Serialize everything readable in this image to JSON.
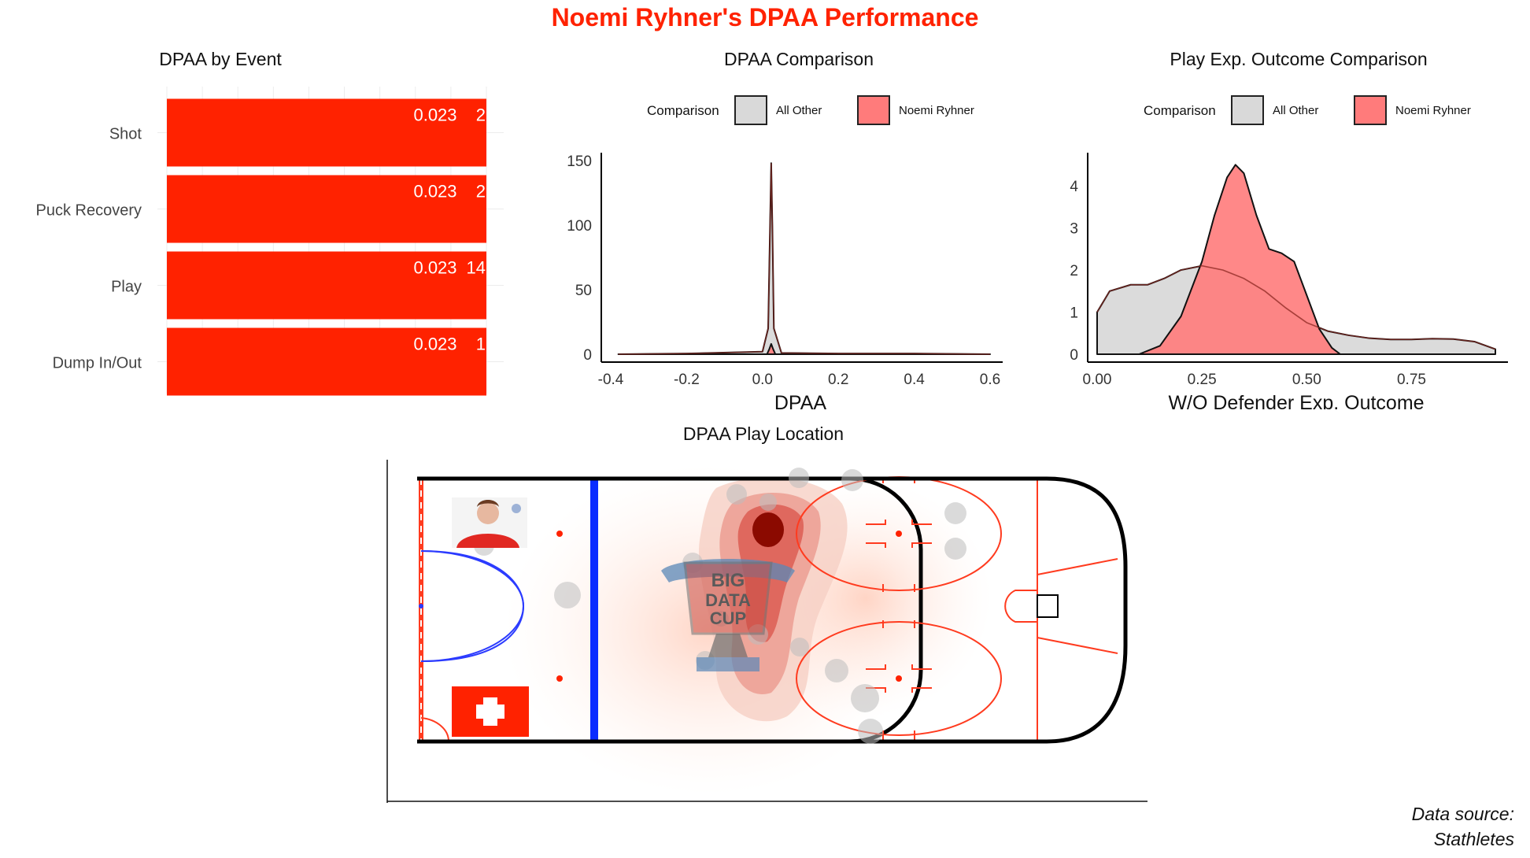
{
  "title": "Noemi Ryhner's DPAA Performance",
  "caption_line1": "Data source:",
  "caption_line2": "Stathletes",
  "colors": {
    "accent": "#ff2200",
    "all_other": "#d9d9d9",
    "player": "#ff7b7b",
    "blue_line": "#0a2cff"
  },
  "icons": {
    "logo": "big-data-cup-logo",
    "flag": "swiss-flag",
    "photo": "player-photo"
  },
  "chart_data": [
    {
      "type": "bar",
      "orientation": "horizontal",
      "title": "DPAA by Event",
      "xlabel": "",
      "ylabel": "",
      "categories": [
        "Shot",
        "Puck Recovery",
        "Play",
        "Dump In/Out"
      ],
      "values": [
        0.023,
        0.023,
        0.023,
        0.023
      ],
      "value_labels": [
        "0.023",
        "0.023",
        "0.023",
        "0.023"
      ],
      "counts": [
        "2",
        "2",
        "14",
        "1"
      ],
      "xlim": [
        0,
        0.023
      ],
      "grid": true
    },
    {
      "type": "area",
      "subtype": "density",
      "title": "DPAA Comparison",
      "xlabel": "DPAA",
      "ylabel": "",
      "legend_title": "Comparison",
      "legend_position": "top",
      "xlim": [
        -0.4,
        0.6
      ],
      "ylim": [
        0,
        150
      ],
      "xticks": [
        "-0.4",
        "-0.2",
        "0.0",
        "0.2",
        "0.4",
        "0.6"
      ],
      "yticks": [
        "0",
        "50",
        "100",
        "150"
      ],
      "series": [
        {
          "name": "All Other",
          "color": "#d9d9d9",
          "x": [
            -0.38,
            -0.2,
            0.0,
            0.015,
            0.02,
            0.023,
            0.026,
            0.03,
            0.05,
            0.2,
            0.4,
            0.6
          ],
          "y": [
            0,
            0.5,
            2,
            20,
            100,
            148,
            100,
            20,
            1,
            0.5,
            0.5,
            0
          ]
        },
        {
          "name": "Noemi Ryhner",
          "color": "#ff7b7b",
          "x": [
            0.012,
            0.018,
            0.023,
            0.028,
            0.034
          ],
          "y": [
            0,
            4,
            8,
            4,
            0
          ]
        }
      ]
    },
    {
      "type": "area",
      "subtype": "density",
      "title": "Play Exp. Outcome Comparison",
      "xlabel": "W/O Defender Exp. Outcome",
      "ylabel": "",
      "legend_title": "Comparison",
      "legend_position": "top",
      "xlim": [
        0,
        0.95
      ],
      "ylim": [
        0,
        4.6
      ],
      "xticks": [
        "0.00",
        "0.25",
        "0.50",
        "0.75"
      ],
      "yticks": [
        "0",
        "1",
        "2",
        "3",
        "4"
      ],
      "series": [
        {
          "name": "All Other",
          "color": "#d9d9d9",
          "x": [
            0.0,
            0.03,
            0.08,
            0.12,
            0.16,
            0.2,
            0.25,
            0.3,
            0.35,
            0.4,
            0.45,
            0.5,
            0.55,
            0.6,
            0.65,
            0.7,
            0.75,
            0.8,
            0.85,
            0.9,
            0.95
          ],
          "y": [
            1.0,
            1.5,
            1.65,
            1.65,
            1.8,
            2.0,
            2.1,
            2.0,
            1.8,
            1.5,
            1.1,
            0.75,
            0.55,
            0.45,
            0.38,
            0.35,
            0.35,
            0.37,
            0.36,
            0.3,
            0.12
          ]
        },
        {
          "name": "Noemi Ryhner",
          "color": "#ff7b7b",
          "x": [
            0.1,
            0.15,
            0.2,
            0.25,
            0.28,
            0.31,
            0.33,
            0.35,
            0.38,
            0.41,
            0.44,
            0.47,
            0.5,
            0.53,
            0.56,
            0.58
          ],
          "y": [
            0.0,
            0.2,
            0.9,
            2.2,
            3.3,
            4.2,
            4.5,
            4.3,
            3.3,
            2.5,
            2.4,
            2.2,
            1.4,
            0.6,
            0.15,
            0.0
          ]
        }
      ]
    },
    {
      "type": "heatmap",
      "title": "DPAA Play Location",
      "xlabel": "",
      "ylabel": "",
      "grid": false
    }
  ]
}
